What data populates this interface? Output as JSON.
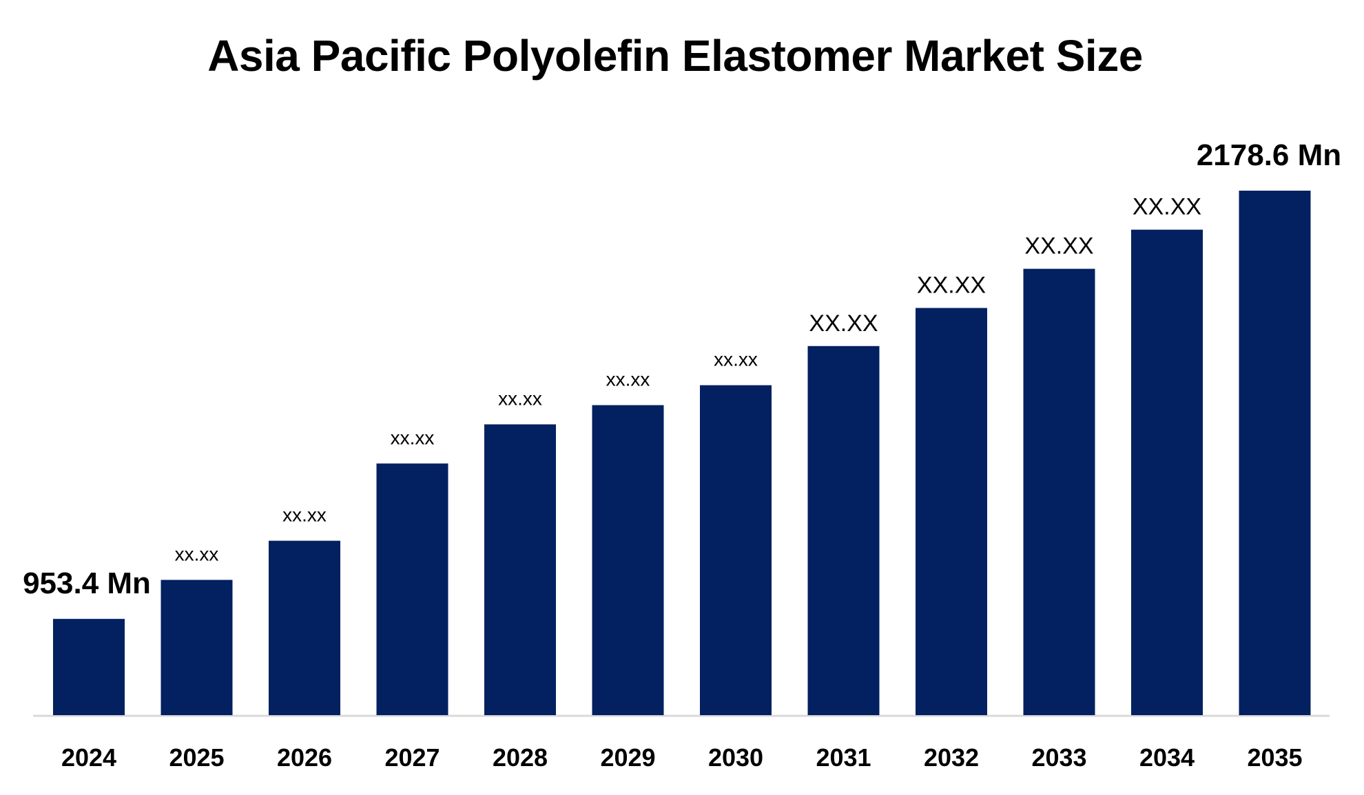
{
  "chart_data": {
    "type": "bar",
    "title": "Asia Pacific Polyolefin Elastomer Market Size",
    "xlabel": "",
    "ylabel": "",
    "categories": [
      "2024",
      "2025",
      "2026",
      "2027",
      "2028",
      "2029",
      "2030",
      "2031",
      "2032",
      "2033",
      "2034",
      "2035"
    ],
    "values": [
      953.4,
      1065,
      1177,
      1398,
      1510,
      1565,
      1622,
      1734,
      1843,
      1955,
      2067,
      2178.6
    ],
    "data_labels": [
      "953.4 Mn",
      "xx.xx",
      "xx.xx",
      "xx.xx",
      "xx.xx",
      "xx.xx",
      "xx.xx",
      "XX.XX",
      "XX.XX",
      "XX.XX",
      "XX.XX",
      "2178.6 Mn"
    ],
    "ylim": [
      678,
      2178.6
    ],
    "grid": false,
    "legend": "none",
    "bar_color": "#032060",
    "axis_color": "#d9d9d9"
  }
}
